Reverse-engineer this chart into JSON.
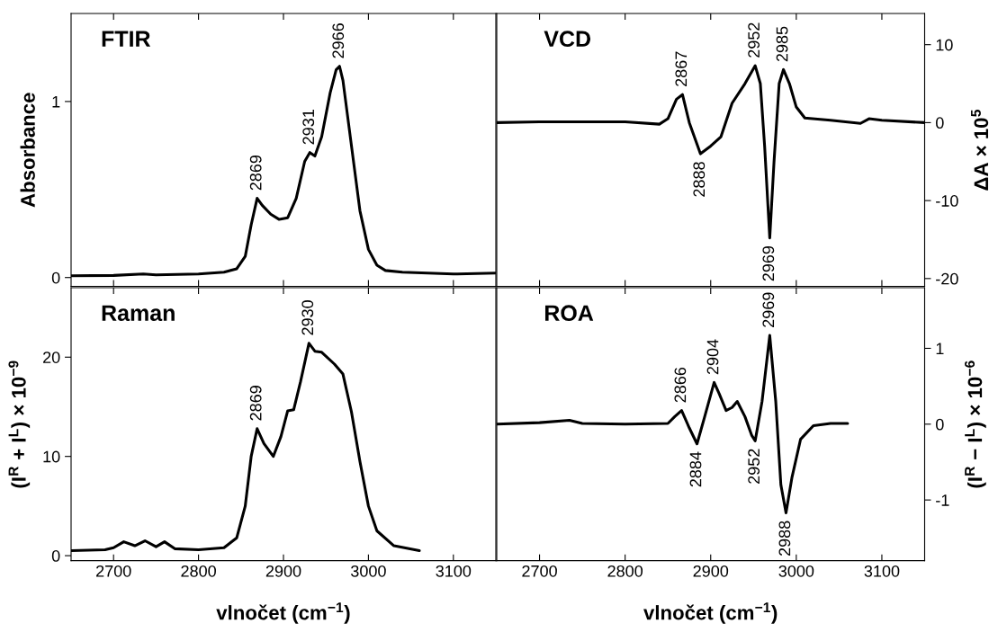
{
  "chart_data": [
    {
      "type": "line",
      "title": "FTIR",
      "ylabel": "Absorbance",
      "xlim": [
        2650,
        3150
      ],
      "xticks": [
        2700,
        2800,
        2900,
        3000,
        3100
      ],
      "ylim": [
        -0.05,
        1.5
      ],
      "yticks": [
        0,
        1
      ],
      "tick_labels": "y",
      "series": [
        {
          "color": "#000000",
          "x": [
            2650,
            2700,
            2735,
            2750,
            2800,
            2830,
            2845,
            2855,
            2862,
            2869,
            2875,
            2885,
            2895,
            2905,
            2915,
            2925,
            2931,
            2937,
            2945,
            2955,
            2962,
            2966,
            2970,
            2980,
            2990,
            3000,
            3010,
            3020,
            3040,
            3100,
            3150
          ],
          "values": [
            0.01,
            0.012,
            0.02,
            0.015,
            0.02,
            0.03,
            0.05,
            0.12,
            0.3,
            0.45,
            0.41,
            0.36,
            0.33,
            0.34,
            0.45,
            0.66,
            0.71,
            0.69,
            0.8,
            1.05,
            1.18,
            1.2,
            1.12,
            0.75,
            0.38,
            0.16,
            0.07,
            0.04,
            0.03,
            0.02,
            0.025
          ]
        }
      ],
      "annotations": [
        {
          "text": "2869",
          "x": 2869,
          "y": 0.45
        },
        {
          "text": "2931",
          "x": 2931,
          "y": 0.71
        },
        {
          "text": "2966",
          "x": 2966,
          "y": 1.2
        }
      ]
    },
    {
      "type": "line",
      "title": "VCD",
      "ylabel": "ΔA × 10$^{5}$",
      "xlim": [
        2650,
        3150
      ],
      "xticks": [
        2700,
        2800,
        2900,
        3000,
        3100
      ],
      "ylim": [
        -21,
        14
      ],
      "yticks": [
        -20,
        -10,
        0,
        10
      ],
      "tick_labels": "y",
      "series": [
        {
          "color": "#000000",
          "x": [
            2650,
            2700,
            2750,
            2800,
            2840,
            2850,
            2860,
            2867,
            2875,
            2888,
            2900,
            2912,
            2925,
            2940,
            2952,
            2958,
            2963,
            2969,
            2974,
            2980,
            2985,
            2992,
            3000,
            3010,
            3040,
            3075,
            3085,
            3100,
            3150
          ],
          "values": [
            0,
            0.1,
            0.1,
            0.1,
            -0.2,
            0.5,
            3,
            3.6,
            0,
            -4,
            -3,
            -1.8,
            2.5,
            5,
            7.3,
            5,
            -3,
            -14.8,
            -5,
            5,
            6.8,
            5,
            2,
            0.6,
            0.3,
            -0.1,
            0.5,
            0.3,
            0
          ]
        }
      ],
      "annotations": [
        {
          "text": "2867",
          "x": 2867,
          "y": 3.6
        },
        {
          "text": "2888",
          "x": 2888,
          "y": -4
        },
        {
          "text": "2952",
          "x": 2952,
          "y": 7.3
        },
        {
          "text": "2969",
          "x": 2969,
          "y": -14.8
        },
        {
          "text": "2985",
          "x": 2985,
          "y": 6.8
        }
      ]
    },
    {
      "type": "line",
      "title": "Raman",
      "xlabel": "vlnočet (cm$^{−1}$)",
      "ylabel": "(I$^{R}$ + I$^{L}$) × 10$^{−9}$",
      "xlim": [
        2650,
        3150
      ],
      "xticks": [
        2700,
        2800,
        2900,
        3000,
        3100
      ],
      "ylim": [
        -0.5,
        27
      ],
      "yticks": [
        0,
        10,
        20
      ],
      "series": [
        {
          "color": "#000000",
          "x": [
            2650,
            2690,
            2700,
            2712,
            2725,
            2737,
            2750,
            2760,
            2772,
            2800,
            2830,
            2845,
            2855,
            2862,
            2869,
            2877,
            2888,
            2897,
            2905,
            2912,
            2920,
            2930,
            2937,
            2945,
            2960,
            2970,
            2980,
            2990,
            3000,
            3010,
            3030,
            3060
          ],
          "values": [
            0.5,
            0.6,
            0.8,
            1.4,
            1.0,
            1.5,
            0.9,
            1.4,
            0.7,
            0.6,
            0.8,
            1.8,
            5,
            10,
            12.8,
            11.3,
            10.0,
            12,
            14.6,
            14.7,
            17.5,
            21.4,
            20.6,
            20.5,
            19.3,
            18.3,
            14.5,
            9.5,
            5,
            2.5,
            1.0,
            0.5
          ]
        }
      ],
      "annotations": [
        {
          "text": "2869",
          "x": 2869,
          "y": 12.8
        },
        {
          "text": "2930",
          "x": 2930,
          "y": 21.4
        }
      ]
    },
    {
      "type": "line",
      "title": "ROA",
      "xlabel": "vlnočet (cm$^{−1}$)",
      "ylabel": "(I$^{R}$ − I$^{L}$) × 10$^{−6}$",
      "xlim": [
        2650,
        3150
      ],
      "xticks": [
        2700,
        2800,
        2900,
        3000,
        3100
      ],
      "ylim": [
        -1.8,
        1.8
      ],
      "yticks": [
        -1,
        0,
        1
      ],
      "series": [
        {
          "color": "#000000",
          "x": [
            2650,
            2700,
            2735,
            2750,
            2800,
            2850,
            2858,
            2866,
            2875,
            2884,
            2893,
            2904,
            2910,
            2918,
            2925,
            2931,
            2940,
            2948,
            2952,
            2960,
            2969,
            2976,
            2982,
            2988,
            2995,
            3005,
            3020,
            3040,
            3060
          ],
          "values": [
            0,
            0.02,
            0.05,
            0.01,
            0,
            0.01,
            0.1,
            0.18,
            -0.05,
            -0.26,
            0.1,
            0.55,
            0.4,
            0.18,
            0.22,
            0.3,
            0.1,
            -0.15,
            -0.22,
            0.3,
            1.17,
            0.3,
            -0.8,
            -1.17,
            -0.7,
            -0.2,
            -0.02,
            0.01,
            0.01
          ]
        }
      ],
      "annotations": [
        {
          "text": "2866",
          "x": 2866,
          "y": 0.18
        },
        {
          "text": "2884",
          "x": 2884,
          "y": -0.26
        },
        {
          "text": "2904",
          "x": 2904,
          "y": 0.55
        },
        {
          "text": "2952",
          "x": 2952,
          "y": -0.22
        },
        {
          "text": "2969",
          "x": 2969,
          "y": 1.17
        },
        {
          "text": "2988",
          "x": 2988,
          "y": -1.17
        }
      ]
    }
  ]
}
